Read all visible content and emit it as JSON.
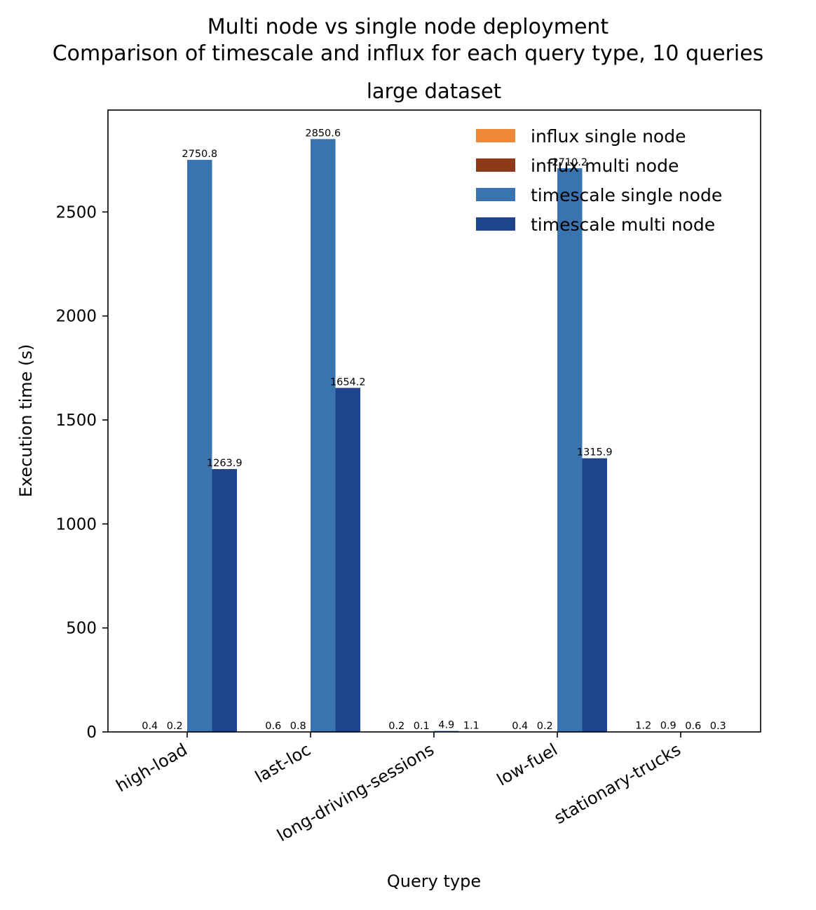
{
  "chart_data": {
    "type": "bar",
    "suptitle_line1": "Multi node vs single node deployment",
    "suptitle_line2": "Comparison of timescale and influx for each query type, 10 queries",
    "title": "large dataset",
    "xlabel": "Query type",
    "ylabel": "Execution time (s)",
    "ylim": [
      0,
      2990
    ],
    "yticks": [
      0,
      500,
      1000,
      1500,
      2000,
      2500
    ],
    "categories": [
      "high-load",
      "last-loc",
      "long-driving-sessions",
      "low-fuel",
      "stationary-trucks"
    ],
    "series": [
      {
        "name": "influx single node",
        "color": "#f0883a",
        "values": [
          0.4,
          0.6,
          0.2,
          0.4,
          1.2
        ]
      },
      {
        "name": "influx multi node",
        "color": "#8c3a18",
        "values": [
          0.2,
          0.8,
          0.1,
          0.2,
          0.9
        ]
      },
      {
        "name": "timescale single node",
        "color": "#3a74b0",
        "values": [
          2750.8,
          2850.6,
          4.9,
          2710.2,
          0.6
        ]
      },
      {
        "name": "timescale multi node",
        "color": "#1f448e",
        "values": [
          1263.9,
          1654.2,
          1.1,
          1315.9,
          0.3
        ]
      }
    ],
    "legend_position": "upper right"
  }
}
